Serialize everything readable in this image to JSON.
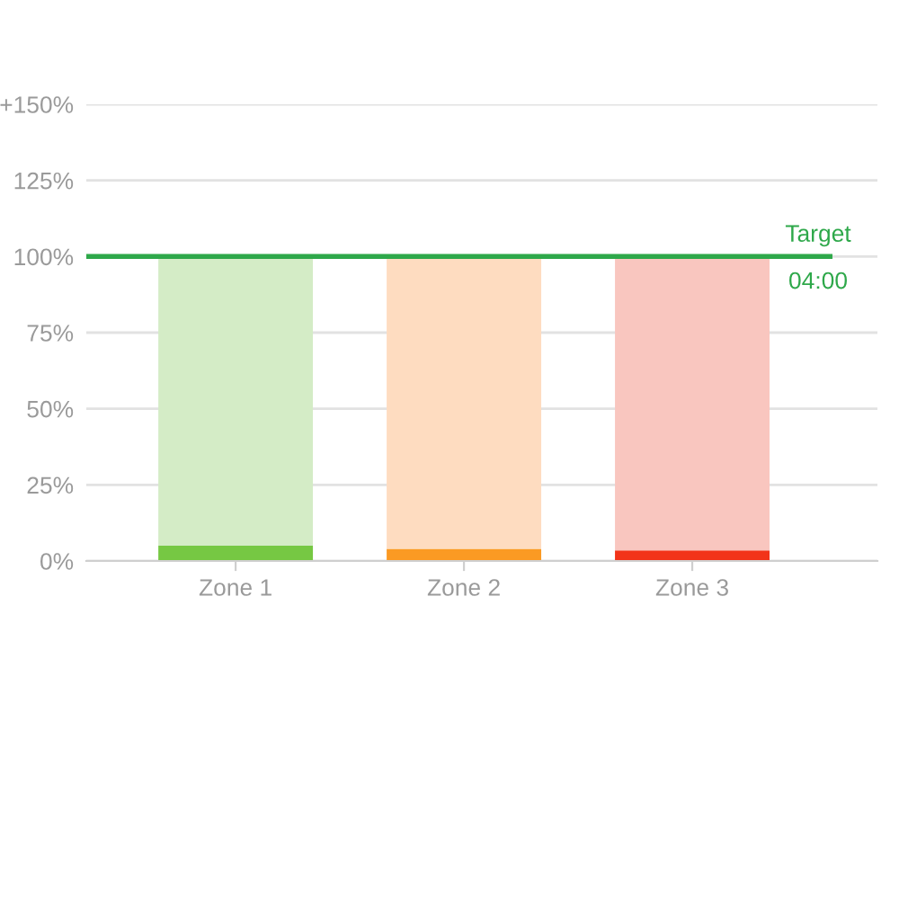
{
  "chart_data": {
    "type": "bar",
    "stacked": true,
    "categories": [
      "Zone 1",
      "Zone 2",
      "Zone 3"
    ],
    "series": [
      {
        "colors": [
          "#76c843",
          "#fb9a23",
          "#f23419"
        ],
        "values": [
          5,
          4,
          3.5
        ]
      },
      {
        "colors": [
          "#d4ecc6",
          "#fedcc0",
          "#f9c6bf"
        ],
        "values": [
          95,
          96,
          96.5
        ]
      }
    ],
    "ylim": [
      0,
      150
    ],
    "yticks": [
      {
        "value": 0,
        "label": "0%"
      },
      {
        "value": 25,
        "label": "25%"
      },
      {
        "value": 50,
        "label": "50%"
      },
      {
        "value": 75,
        "label": "75%"
      },
      {
        "value": 100,
        "label": "100%"
      },
      {
        "value": 125,
        "label": "125%"
      },
      {
        "value": 150,
        "label": "+150%"
      }
    ],
    "grid": "y",
    "legend": false,
    "ref_lines": [
      {
        "axis": "y",
        "value": 100,
        "label": "Target",
        "color": "#2ea84a"
      }
    ],
    "annotations": [
      "04:00"
    ]
  }
}
